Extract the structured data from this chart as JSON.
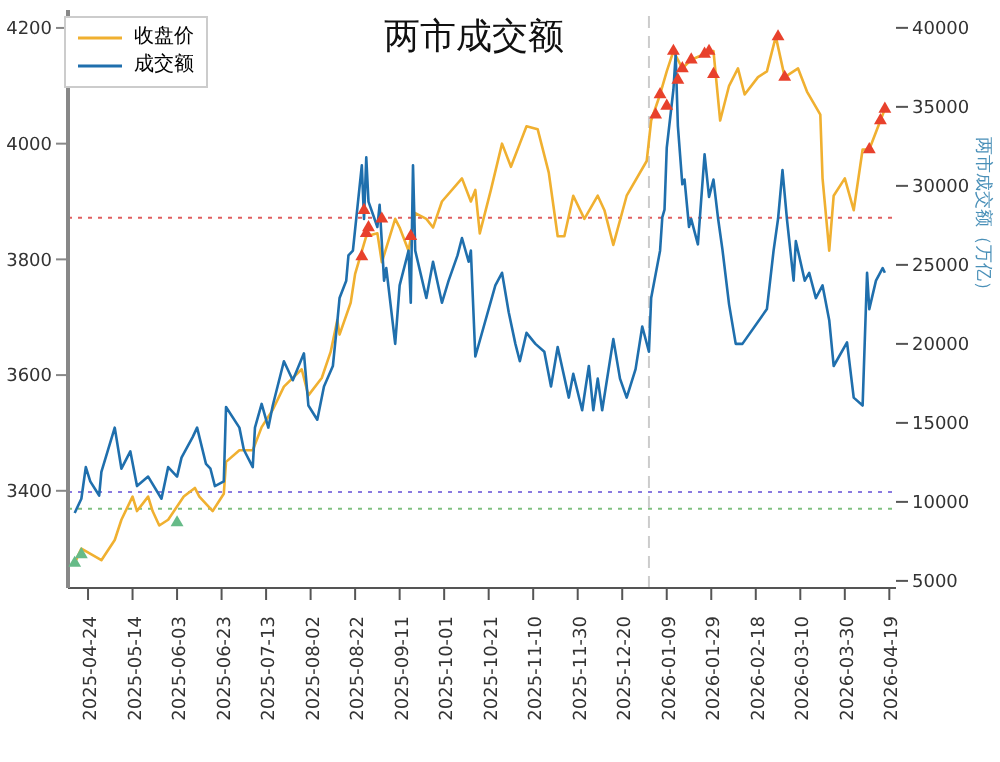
{
  "chart_data": {
    "type": "line",
    "title": "两市成交额",
    "y2label": "两市成交额（万亿）",
    "legend": "top left",
    "xlim": [
      "2025-04-15",
      "2026-04-22"
    ],
    "xticks": [
      "2025-04-24",
      "2025-05-14",
      "2025-06-03",
      "2025-06-23",
      "2025-07-13",
      "2025-08-02",
      "2025-08-22",
      "2025-09-11",
      "2025-10-01",
      "2025-10-21",
      "2025-11-10",
      "2025-11-30",
      "2025-12-20",
      "2026-01-09",
      "2026-01-29",
      "2026-02-18",
      "2026-03-10",
      "2026-03-30",
      "2026-04-19"
    ],
    "ylim": [
      3232,
      4231
    ],
    "yticks": [
      3400,
      3600,
      3800,
      4000,
      4200
    ],
    "y2lim": [
      4550,
      41130
    ],
    "y2ticks": [
      5000,
      10000,
      15000,
      20000,
      25000,
      30000,
      35000,
      40000
    ],
    "series": [
      {
        "name": "收盘价",
        "marker": "none",
        "color": "#f0b030",
        "x": [
          "2025-04-18",
          "2025-04-21",
          "2025-04-30",
          "2025-05-06",
          "2025-05-09",
          "2025-05-14",
          "2025-05-16",
          "2025-05-21",
          "2025-05-23",
          "2025-05-26",
          "2025-05-30",
          "2025-06-06",
          "2025-06-11",
          "2025-06-13",
          "2025-06-19",
          "2025-06-24",
          "2025-06-25",
          "2025-07-01",
          "2025-07-07",
          "2025-07-11",
          "2025-07-16",
          "2025-07-21",
          "2025-07-29",
          "2025-08-01",
          "2025-08-07",
          "2025-08-11",
          "2025-08-14",
          "2025-08-15",
          "2025-08-20",
          "2025-08-22",
          "2025-08-27",
          "2025-09-01",
          "2025-09-03",
          "2025-09-09",
          "2025-09-11",
          "2025-09-15",
          "2025-09-18",
          "2025-09-23",
          "2025-09-26",
          "2025-09-30",
          "2025-10-09",
          "2025-10-13",
          "2025-10-15",
          "2025-10-17",
          "2025-10-22",
          "2025-10-27",
          "2025-10-31",
          "2025-11-04",
          "2025-11-07",
          "2025-11-12",
          "2025-11-17",
          "2025-11-21",
          "2025-11-24",
          "2025-11-28",
          "2025-12-03",
          "2025-12-09",
          "2025-12-12",
          "2025-12-16",
          "2025-12-22",
          "2025-12-31",
          "2026-01-02",
          "2026-01-06",
          "2026-01-09",
          "2026-01-12",
          "2026-01-16",
          "2026-01-20",
          "2026-01-26",
          "2026-01-30",
          "2026-02-02",
          "2026-02-06",
          "2026-02-10",
          "2026-02-13",
          "2026-02-19",
          "2026-02-23",
          "2026-02-27",
          "2026-03-03",
          "2026-03-09",
          "2026-03-13",
          "2026-03-19",
          "2026-03-20",
          "2026-03-23",
          "2026-03-25",
          "2026-03-30",
          "2026-04-03",
          "2026-04-07",
          "2026-04-10",
          "2026-04-15",
          "2026-04-17"
        ],
        "values": [
          3275,
          3300,
          3280,
          3315,
          3350,
          3390,
          3365,
          3390,
          3365,
          3340,
          3350,
          3390,
          3405,
          3390,
          3365,
          3395,
          3450,
          3470,
          3470,
          3510,
          3540,
          3580,
          3610,
          3565,
          3595,
          3640,
          3695,
          3670,
          3725,
          3775,
          3840,
          3845,
          3795,
          3870,
          3855,
          3815,
          3880,
          3870,
          3855,
          3900,
          3940,
          3900,
          3920,
          3845,
          3920,
          4000,
          3960,
          4000,
          4030,
          4025,
          3950,
          3840,
          3840,
          3910,
          3870,
          3910,
          3885,
          3825,
          3910,
          3970,
          4040,
          4085,
          4125,
          4160,
          4130,
          4145,
          4155,
          4160,
          4040,
          4100,
          4130,
          4085,
          4115,
          4125,
          4185,
          4115,
          4130,
          4090,
          4050,
          3940,
          3815,
          3910,
          3940,
          3885,
          3990,
          3990,
          4040,
          4060
        ]
      },
      {
        "name": "成交额",
        "axis": "y2",
        "marker": "none",
        "color": "#1f6fad",
        "x": [
          "2025-04-18",
          "2025-04-21",
          "2025-04-23",
          "2025-04-25",
          "2025-04-29",
          "2025-04-30",
          "2025-05-06",
          "2025-05-09",
          "2025-05-13",
          "2025-05-16",
          "2025-05-21",
          "2025-05-27",
          "2025-05-30",
          "2025-06-03",
          "2025-06-05",
          "2025-06-10",
          "2025-06-12",
          "2025-06-16",
          "2025-06-18",
          "2025-06-20",
          "2025-06-24",
          "2025-06-25",
          "2025-07-01",
          "2025-07-03",
          "2025-07-07",
          "2025-07-08",
          "2025-07-11",
          "2025-07-14",
          "2025-07-16",
          "2025-07-21",
          "2025-07-25",
          "2025-07-30",
          "2025-08-01",
          "2025-08-05",
          "2025-08-08",
          "2025-08-12",
          "2025-08-14",
          "2025-08-15",
          "2025-08-18",
          "2025-08-19",
          "2025-08-21",
          "2025-08-25",
          "2025-08-26",
          "2025-08-27",
          "2025-08-28",
          "2025-09-01",
          "2025-09-02",
          "2025-09-04",
          "2025-09-05",
          "2025-09-09",
          "2025-09-11",
          "2025-09-15",
          "2025-09-16",
          "2025-09-17",
          "2025-09-18",
          "2025-09-23",
          "2025-09-26",
          "2025-09-30",
          "2025-10-03",
          "2025-10-07",
          "2025-10-09",
          "2025-10-12",
          "2025-10-13",
          "2025-10-15",
          "2025-10-24",
          "2025-10-27",
          "2025-10-30",
          "2025-11-02",
          "2025-11-04",
          "2025-11-07",
          "2025-11-11",
          "2025-11-15",
          "2025-11-18",
          "2025-11-21",
          "2025-11-26",
          "2025-11-28",
          "2025-12-02",
          "2025-12-05",
          "2025-12-07",
          "2025-12-09",
          "2025-12-11",
          "2025-12-16",
          "2025-12-19",
          "2025-12-22",
          "2025-12-26",
          "2025-12-29",
          "2026-01-01",
          "2026-01-02",
          "2026-01-06",
          "2026-01-07",
          "2026-01-08",
          "2026-01-09",
          "2026-01-12",
          "2026-01-13",
          "2026-01-14",
          "2026-01-16",
          "2026-01-17",
          "2026-01-19",
          "2026-01-20",
          "2026-01-23",
          "2026-01-26",
          "2026-01-28",
          "2026-01-30",
          "2026-02-01",
          "2026-02-03",
          "2026-02-06",
          "2026-02-09",
          "2026-02-12",
          "2026-02-23",
          "2026-02-26",
          "2026-02-28",
          "2026-03-02",
          "2026-03-04",
          "2026-03-07",
          "2026-03-08",
          "2026-03-12",
          "2026-03-14",
          "2026-03-17",
          "2026-03-20",
          "2026-03-23",
          "2026-03-25",
          "2026-03-31",
          "2026-04-03",
          "2026-04-07",
          "2026-04-09",
          "2026-04-10",
          "2026-04-13",
          "2026-04-16",
          "2026-04-17"
        ],
        "values": [
          9300,
          10200,
          12200,
          11300,
          10400,
          11900,
          14700,
          12100,
          13200,
          11000,
          11600,
          10200,
          12200,
          11600,
          12800,
          14100,
          14700,
          12400,
          12100,
          11000,
          11300,
          16000,
          14700,
          13300,
          12200,
          14700,
          16200,
          14700,
          16100,
          18900,
          17700,
          19400,
          16100,
          15200,
          17300,
          18600,
          21400,
          22900,
          24000,
          25600,
          25900,
          31300,
          27900,
          31800,
          29000,
          27400,
          28800,
          24000,
          24800,
          20000,
          23700,
          25900,
          22600,
          31300,
          25900,
          22900,
          25200,
          22600,
          24000,
          25600,
          26700,
          25200,
          25900,
          19200,
          23700,
          24500,
          22000,
          20000,
          18900,
          20700,
          20000,
          19500,
          17300,
          19800,
          16600,
          18100,
          15800,
          18600,
          15800,
          17800,
          15800,
          20300,
          17800,
          16600,
          18400,
          21100,
          19500,
          22900,
          25900,
          28000,
          28500,
          32400,
          36100,
          38300,
          33800,
          30100,
          30400,
          27400,
          27900,
          26300,
          32000,
          29300,
          30400,
          28000,
          26000,
          22500,
          20000,
          20000,
          22200,
          25900,
          27900,
          31000,
          27900,
          24000,
          26500,
          24000,
          24500,
          22900,
          23700,
          21500,
          18600,
          20100,
          16600,
          16100,
          24500,
          22200,
          24000,
          24800,
          24500
        ]
      },
      {
        "type": "scatter",
        "marker": "triangle",
        "color": "#e8412c",
        "x": [
          "2025-08-25",
          "2025-08-26",
          "2025-08-27",
          "2025-08-28",
          "2025-09-03",
          "2025-09-16",
          "2026-01-04",
          "2026-01-06",
          "2026-01-09",
          "2026-01-12",
          "2026-01-14",
          "2026-01-16",
          "2026-01-20",
          "2026-01-26",
          "2026-01-28",
          "2026-01-30",
          "2026-02-28",
          "2026-03-03",
          "2026-04-10",
          "2026-04-15",
          "2026-04-17"
        ],
        "values": [
          3805,
          3885,
          3845,
          3855,
          3870,
          3840,
          4050,
          4085,
          4065,
          4160,
          4110,
          4130,
          4145,
          4155,
          4160,
          4120,
          4185,
          4115,
          3990,
          4040,
          4060
        ]
      },
      {
        "type": "scatter",
        "marker": "triangle",
        "color": "#66bb88",
        "x": [
          "2025-04-18",
          "2025-04-21",
          "2025-06-03"
        ],
        "values": [
          3275,
          3290,
          3345
        ]
      }
    ],
    "ref_lines": [
      {
        "axis": "y",
        "value": 3872,
        "color": "#e06060",
        "line_style": "dotted"
      },
      {
        "axis": "y",
        "value": 3398,
        "color": "#8a7ae0",
        "line_style": "dotted"
      },
      {
        "axis": "y",
        "value": 3369,
        "color": "#80c080",
        "line_style": "dotted"
      },
      {
        "axis": "x",
        "value": "2026-01-01",
        "color": "#cccccc",
        "line_style": "dashed"
      }
    ]
  }
}
